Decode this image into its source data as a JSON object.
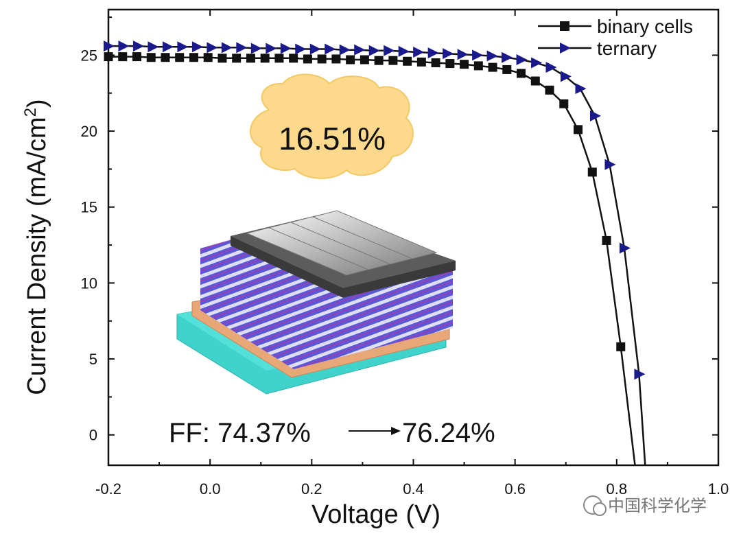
{
  "chart_data": {
    "type": "line",
    "title": "",
    "xlabel": "Voltage (V)",
    "ylabel_base": "Current Density (mA/cm",
    "ylabel_sup": "2",
    "ylabel_end": ")",
    "xlim": [
      -0.2,
      1.0
    ],
    "ylim": [
      -2,
      28
    ],
    "xticks": [
      -0.2,
      0.0,
      0.2,
      0.4,
      0.6,
      0.8,
      1.0
    ],
    "xtick_labels": [
      "-0.2",
      "0.0",
      "0.2",
      "0.4",
      "0.6",
      "0.8",
      "1.0"
    ],
    "yticks": [
      0,
      5,
      10,
      15,
      20,
      25
    ],
    "ytick_labels": [
      "0",
      "5",
      "10",
      "15",
      "20",
      "25"
    ],
    "grid": false,
    "legend_position": "top-right",
    "series": [
      {
        "name": "binary cells",
        "marker": "square",
        "color": "#111111",
        "x": [
          -0.2,
          -0.172,
          -0.144,
          -0.116,
          -0.088,
          -0.06,
          -0.032,
          -0.004,
          0.024,
          0.052,
          0.08,
          0.108,
          0.136,
          0.164,
          0.192,
          0.22,
          0.248,
          0.276,
          0.304,
          0.332,
          0.36,
          0.388,
          0.416,
          0.444,
          0.472,
          0.5,
          0.528,
          0.556,
          0.584,
          0.612,
          0.64,
          0.668,
          0.696,
          0.724,
          0.752,
          0.78,
          0.808,
          0.836
        ],
        "y": [
          24.9,
          24.9,
          24.9,
          24.85,
          24.85,
          24.85,
          24.85,
          24.85,
          24.8,
          24.8,
          24.8,
          24.8,
          24.8,
          24.8,
          24.75,
          24.75,
          24.75,
          24.7,
          24.7,
          24.65,
          24.65,
          24.6,
          24.55,
          24.5,
          24.45,
          24.4,
          24.3,
          24.2,
          24.05,
          23.8,
          23.3,
          22.7,
          21.8,
          20.1,
          17.3,
          12.8,
          5.8,
          -2.0
        ]
      },
      {
        "name": "ternary",
        "marker": "triangle-right",
        "color": "#1a1a8c",
        "line_color": "#111111",
        "x": [
          -0.2,
          -0.171,
          -0.142,
          -0.113,
          -0.084,
          -0.055,
          -0.026,
          0.003,
          0.032,
          0.061,
          0.09,
          0.119,
          0.148,
          0.177,
          0.206,
          0.235,
          0.264,
          0.293,
          0.322,
          0.351,
          0.38,
          0.409,
          0.438,
          0.467,
          0.496,
          0.525,
          0.554,
          0.583,
          0.612,
          0.641,
          0.67,
          0.699,
          0.728,
          0.757,
          0.786,
          0.815,
          0.844,
          0.856
        ],
        "y": [
          25.6,
          25.6,
          25.6,
          25.55,
          25.55,
          25.55,
          25.55,
          25.5,
          25.5,
          25.5,
          25.45,
          25.45,
          25.45,
          25.4,
          25.4,
          25.4,
          25.35,
          25.35,
          25.3,
          25.3,
          25.25,
          25.2,
          25.15,
          25.1,
          25.05,
          25.0,
          24.95,
          24.85,
          24.7,
          24.5,
          24.2,
          23.6,
          22.8,
          21.0,
          17.8,
          12.3,
          4.0,
          -2.0
        ],
        "marker_count": 37
      }
    ],
    "annotations": {
      "pce": "16.51%",
      "ff_label": "FF: 74.37%",
      "ff_new": "76.24%"
    }
  },
  "watermark": {
    "text": "中国科学化学"
  }
}
